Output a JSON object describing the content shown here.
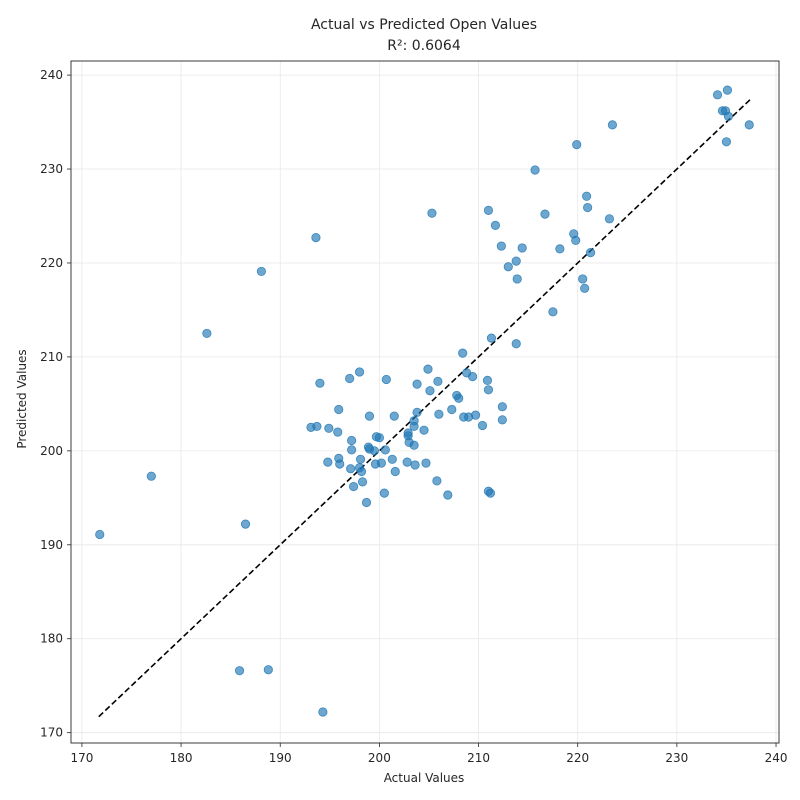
{
  "chart_data": {
    "type": "scatter",
    "title": "Actual vs Predicted Open Values",
    "subtitle": "R²: 0.6064",
    "xlabel": "Actual Values",
    "ylabel": "Predicted Values",
    "xlim": [
      168.9,
      240.3
    ],
    "ylim": [
      168.9,
      241.5
    ],
    "xticks": [
      "170",
      "180",
      "190",
      "200",
      "210",
      "220",
      "230",
      "240"
    ],
    "yticks": [
      "170",
      "180",
      "190",
      "200",
      "210",
      "220",
      "230",
      "240"
    ],
    "grid": true,
    "point_color": "#1f77b4",
    "reference_line": {
      "x": [
        171.7,
        237.4
      ],
      "y": [
        171.7,
        237.4
      ],
      "style": "dashed",
      "color": "#000000"
    },
    "points": [
      [
        171.8,
        191.1
      ],
      [
        177.0,
        197.3
      ],
      [
        182.6,
        212.5
      ],
      [
        185.9,
        176.6
      ],
      [
        186.5,
        192.2
      ],
      [
        188.1,
        219.1
      ],
      [
        188.8,
        176.7
      ],
      [
        193.1,
        202.5
      ],
      [
        193.6,
        222.7
      ],
      [
        193.7,
        202.6
      ],
      [
        194.0,
        207.2
      ],
      [
        194.3,
        172.2
      ],
      [
        194.8,
        198.8
      ],
      [
        194.9,
        202.4
      ],
      [
        195.8,
        202.0
      ],
      [
        195.9,
        204.4
      ],
      [
        195.9,
        199.2
      ],
      [
        196.0,
        198.6
      ],
      [
        197.0,
        207.7
      ],
      [
        197.1,
        198.1
      ],
      [
        197.2,
        200.1
      ],
      [
        197.2,
        201.1
      ],
      [
        197.4,
        196.2
      ],
      [
        198.0,
        208.4
      ],
      [
        198.0,
        198.2
      ],
      [
        198.1,
        199.1
      ],
      [
        198.2,
        197.8
      ],
      [
        198.3,
        196.7
      ],
      [
        198.7,
        194.5
      ],
      [
        198.9,
        200.4
      ],
      [
        199.0,
        203.7
      ],
      [
        199.0,
        200.2
      ],
      [
        199.5,
        200.0
      ],
      [
        199.6,
        198.6
      ],
      [
        199.7,
        201.5
      ],
      [
        200.0,
        201.4
      ],
      [
        200.2,
        198.7
      ],
      [
        200.5,
        195.5
      ],
      [
        200.6,
        200.1
      ],
      [
        200.7,
        207.6
      ],
      [
        201.3,
        199.1
      ],
      [
        201.5,
        203.7
      ],
      [
        201.6,
        197.8
      ],
      [
        202.8,
        198.8
      ],
      [
        202.9,
        201.6
      ],
      [
        202.9,
        201.9
      ],
      [
        203.0,
        200.9
      ],
      [
        203.5,
        202.6
      ],
      [
        203.5,
        203.2
      ],
      [
        203.5,
        200.6
      ],
      [
        203.6,
        198.5
      ],
      [
        203.8,
        207.1
      ],
      [
        203.8,
        204.1
      ],
      [
        204.5,
        202.2
      ],
      [
        204.7,
        198.7
      ],
      [
        204.9,
        208.7
      ],
      [
        205.1,
        206.4
      ],
      [
        205.3,
        225.3
      ],
      [
        205.8,
        196.8
      ],
      [
        205.9,
        207.4
      ],
      [
        206.0,
        203.9
      ],
      [
        206.9,
        195.3
      ],
      [
        207.3,
        204.4
      ],
      [
        207.8,
        205.9
      ],
      [
        208.0,
        205.6
      ],
      [
        208.4,
        210.4
      ],
      [
        208.5,
        203.6
      ],
      [
        208.8,
        208.3
      ],
      [
        209.0,
        203.6
      ],
      [
        209.4,
        207.9
      ],
      [
        209.7,
        203.8
      ],
      [
        210.4,
        202.7
      ],
      [
        210.9,
        207.5
      ],
      [
        211.0,
        195.7
      ],
      [
        211.0,
        206.5
      ],
      [
        211.0,
        225.6
      ],
      [
        211.2,
        195.5
      ],
      [
        211.3,
        212.0
      ],
      [
        211.7,
        224.0
      ],
      [
        212.3,
        221.8
      ],
      [
        212.4,
        203.3
      ],
      [
        212.4,
        204.7
      ],
      [
        213.0,
        219.6
      ],
      [
        213.8,
        211.4
      ],
      [
        213.8,
        220.2
      ],
      [
        213.9,
        218.3
      ],
      [
        214.4,
        221.6
      ],
      [
        215.7,
        229.9
      ],
      [
        216.7,
        225.2
      ],
      [
        217.5,
        214.8
      ],
      [
        218.2,
        221.5
      ],
      [
        219.6,
        223.1
      ],
      [
        219.8,
        222.4
      ],
      [
        219.9,
        232.6
      ],
      [
        220.5,
        218.3
      ],
      [
        220.7,
        217.3
      ],
      [
        220.9,
        227.1
      ],
      [
        221.0,
        225.9
      ],
      [
        221.3,
        221.1
      ],
      [
        223.2,
        224.7
      ],
      [
        223.5,
        234.7
      ],
      [
        234.1,
        237.9
      ],
      [
        234.6,
        236.2
      ],
      [
        234.9,
        236.2
      ],
      [
        235.0,
        232.9
      ],
      [
        235.1,
        238.4
      ],
      [
        235.2,
        235.6
      ],
      [
        237.3,
        234.7
      ]
    ]
  }
}
